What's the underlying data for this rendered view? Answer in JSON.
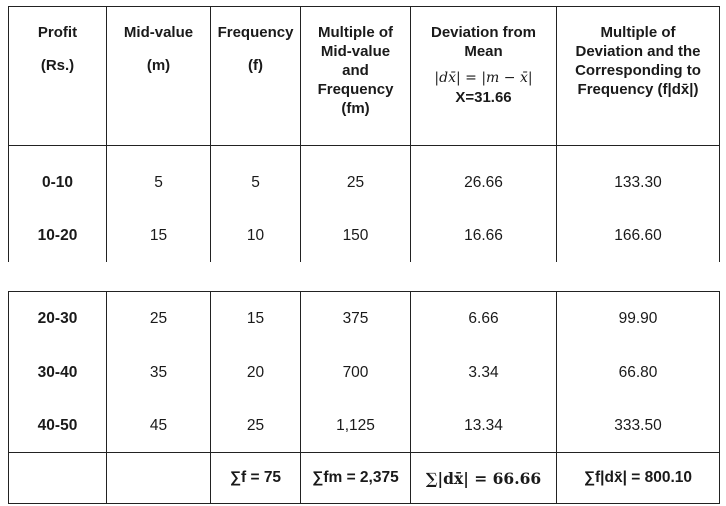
{
  "header": {
    "profit": [
      "Profit",
      "(Rs.)"
    ],
    "mid": [
      "Mid-value",
      "(m)"
    ],
    "freq": [
      "Frequency",
      "(f)"
    ],
    "multiple": [
      "Multiple of",
      "Mid-value",
      "and",
      "Frequency",
      "(fm)"
    ],
    "deviation": [
      "Deviation from",
      "Mean",
      "|dx̄| = |m − x̄|",
      "X=31.66"
    ],
    "mult_dev": [
      "Multiple of",
      "Deviation and the",
      "Corresponding to",
      "Frequency (f|dx̄|)"
    ]
  },
  "rows": [
    {
      "profit": "0-10",
      "m": "5",
      "f": "5",
      "fm": "25",
      "dev": "26.66",
      "fdev": "133.30"
    },
    {
      "profit": "10-20",
      "m": "15",
      "f": "10",
      "fm": "150",
      "dev": "16.66",
      "fdev": "166.60"
    },
    {
      "profit": "20-30",
      "m": "25",
      "f": "15",
      "fm": "375",
      "dev": "6.66",
      "fdev": "99.90"
    },
    {
      "profit": "30-40",
      "m": "35",
      "f": "20",
      "fm": "700",
      "dev": "3.34",
      "fdev": "66.80"
    },
    {
      "profit": "40-50",
      "m": "45",
      "f": "25",
      "fm": "1,125",
      "dev": "13.34",
      "fdev": "333.50"
    }
  ],
  "totals": {
    "sum_f": "∑f = 75",
    "sum_fm": "∑fm = 2,375",
    "sum_dev": "∑|dx̄| = 66.66",
    "sum_fdev": "∑f|dx̄| = 800.10"
  }
}
